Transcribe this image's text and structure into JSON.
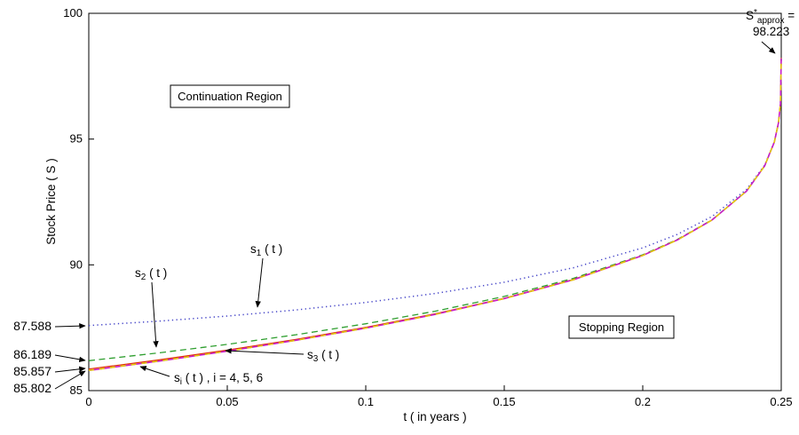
{
  "labels": {
    "xlabel": "t ( in years )",
    "ylabel": "Stock Price ( S )",
    "continuation": "Continuation Region",
    "stopping": "Stopping Region",
    "s1": {
      "base": "s",
      "sub": "1",
      "rest": " ( t )"
    },
    "s2": {
      "base": "s",
      "sub": "2",
      "rest": " ( t )"
    },
    "s3": {
      "base": "s",
      "sub": "3",
      "rest": " ( t )"
    },
    "s456": {
      "base": "s",
      "sub": "i",
      "rest": " ( t ) , i = 4, 5, 6"
    },
    "sapprox": {
      "base": "S",
      "sup": "*",
      "sub": "approx",
      "eq": " =",
      "value": "98.223"
    },
    "left": [
      "87.588",
      "86.189",
      "85.857",
      "85.802"
    ]
  },
  "chart_data": {
    "type": "line",
    "title": "",
    "xlabel": "t ( in years )",
    "ylabel": "Stock Price ( S )",
    "xlim": [
      0,
      0.25
    ],
    "ylim": [
      85,
      100
    ],
    "grid": false,
    "legend": null,
    "xticks": [
      {
        "v": 0,
        "label": "0"
      },
      {
        "v": 0.05,
        "label": "0.05"
      },
      {
        "v": 0.1,
        "label": "0.1"
      },
      {
        "v": 0.15,
        "label": "0.15"
      },
      {
        "v": 0.2,
        "label": "0.2"
      },
      {
        "v": 0.25,
        "label": "0.25"
      }
    ],
    "yticks": [
      {
        "v": 85,
        "label": "85"
      },
      {
        "v": 90,
        "label": "90"
      },
      {
        "v": 95,
        "label": "95"
      },
      {
        "v": 100,
        "label": "100"
      }
    ],
    "s_approx_star": 98.223,
    "x": [
      0,
      0.025,
      0.05,
      0.075,
      0.1,
      0.125,
      0.15,
      0.175,
      0.2,
      0.2125,
      0.225,
      0.2375,
      0.244,
      0.2475,
      0.249,
      0.2497,
      0.25
    ],
    "series": [
      {
        "name": "s1",
        "label": "s_1(t)",
        "style": "dotted",
        "color": "#4646c8",
        "width": 1.5,
        "boundary_at_t0": 87.588,
        "values": [
          87.588,
          87.76,
          87.964,
          88.209,
          88.503,
          88.862,
          89.309,
          89.885,
          90.675,
          91.212,
          91.921,
          93.0,
          93.962,
          94.891,
          95.651,
          96.397,
          98.223
        ]
      },
      {
        "name": "s2",
        "label": "s_2(t)",
        "style": "dashed",
        "color": "#2e9e2e",
        "width": 1.3,
        "boundary_at_t0": 86.189,
        "values": [
          86.189,
          86.496,
          86.838,
          87.222,
          87.656,
          88.157,
          88.746,
          89.466,
          90.4,
          91.009,
          91.789,
          92.937,
          93.934,
          94.881,
          95.648,
          96.396,
          98.223
        ]
      },
      {
        "name": "s3",
        "label": "s_3(t)",
        "style": "solid",
        "color": "#e03000",
        "width": 1.2,
        "boundary_at_t0": 85.857,
        "values": [
          85.857,
          86.217,
          86.609,
          87.039,
          87.515,
          88.053,
          88.675,
          89.423,
          90.379,
          90.996,
          91.782,
          92.936,
          93.933,
          94.881,
          95.647,
          96.396,
          98.223
        ]
      },
      {
        "name": "s4_s5_s6",
        "label": "s_i(t), i = 4, 5, 6",
        "style": "solid",
        "color": "#c81ec8",
        "width": 1.6,
        "overlay_color": "#e3cf00",
        "overlay_style": "dashed",
        "boundary_at_t0": 85.802,
        "values": [
          85.802,
          86.169,
          86.567,
          87.003,
          87.485,
          88.029,
          88.657,
          89.41,
          90.371,
          90.99,
          91.779,
          92.934,
          93.932,
          94.88,
          95.647,
          96.396,
          98.223
        ]
      }
    ]
  }
}
